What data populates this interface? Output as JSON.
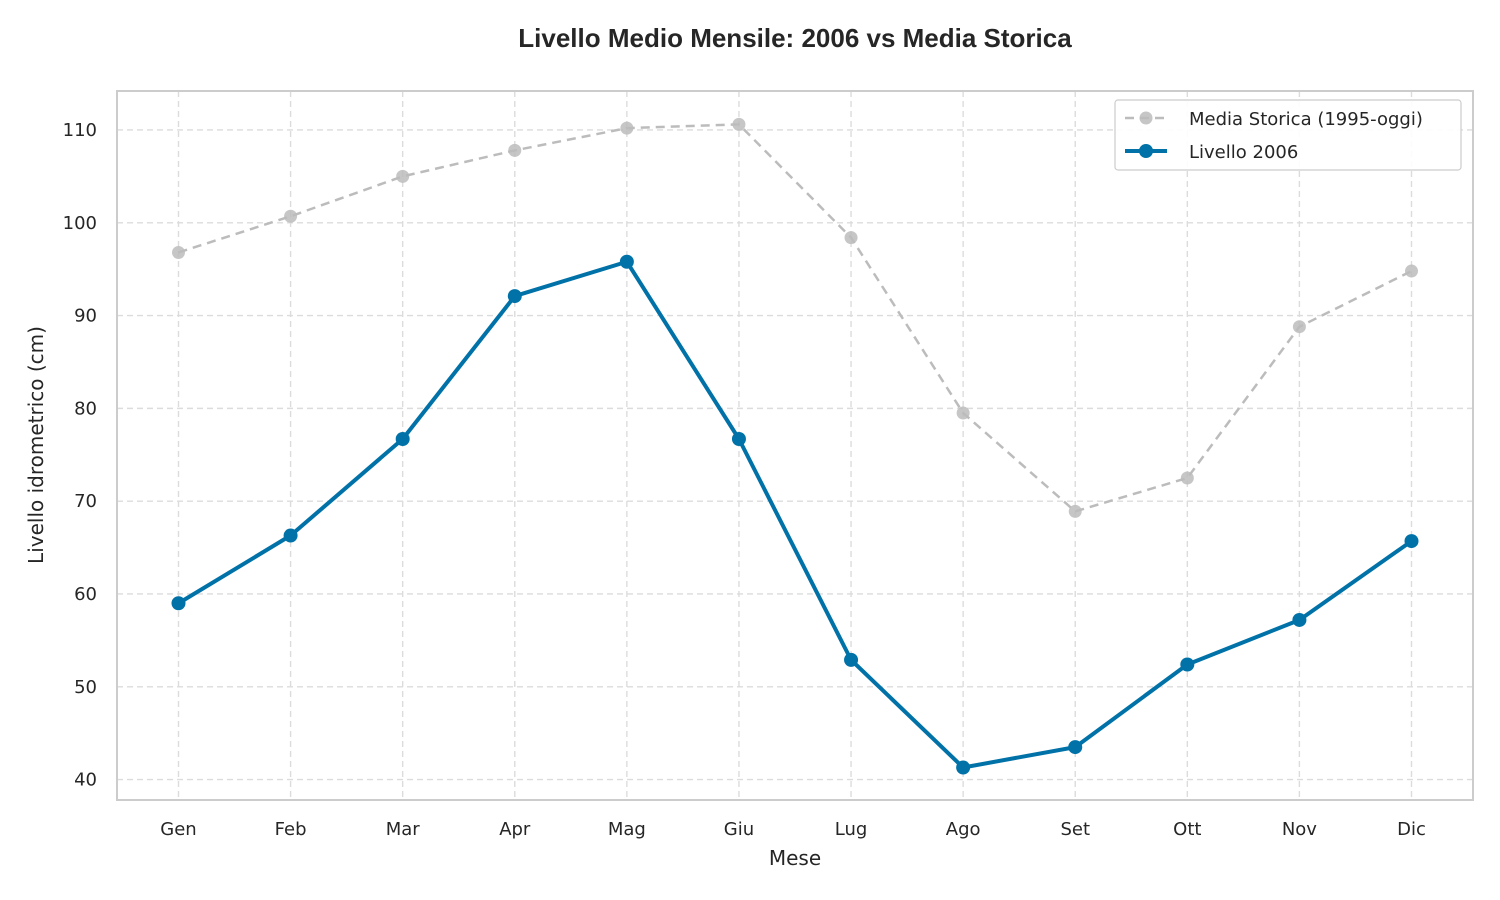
{
  "chart_data": {
    "type": "line",
    "title": "Livello Medio Mensile: 2006 vs Media Storica",
    "xlabel": "Mese",
    "ylabel": "Livello idrometrico (cm)",
    "categories": [
      "Gen",
      "Feb",
      "Mar",
      "Apr",
      "Mag",
      "Giu",
      "Lug",
      "Ago",
      "Set",
      "Ott",
      "Nov",
      "Dic"
    ],
    "ylim": [
      37.8,
      114.2
    ],
    "yticks": [
      40,
      50,
      60,
      70,
      80,
      90,
      100,
      110
    ],
    "grid": true,
    "legend_position": "top-right",
    "series": [
      {
        "name": "Media Storica (1995-oggi)",
        "style": "dashed",
        "color": "#bcbcbc",
        "values": [
          96.8,
          100.7,
          105.0,
          107.8,
          110.2,
          110.6,
          98.4,
          79.5,
          68.9,
          72.5,
          88.8,
          94.8
        ]
      },
      {
        "name": "Livello 2006",
        "style": "solid",
        "color": "#0072a8",
        "values": [
          59.0,
          66.3,
          76.7,
          92.1,
          95.8,
          76.7,
          52.9,
          41.3,
          43.5,
          52.4,
          57.2,
          65.7
        ]
      }
    ]
  }
}
